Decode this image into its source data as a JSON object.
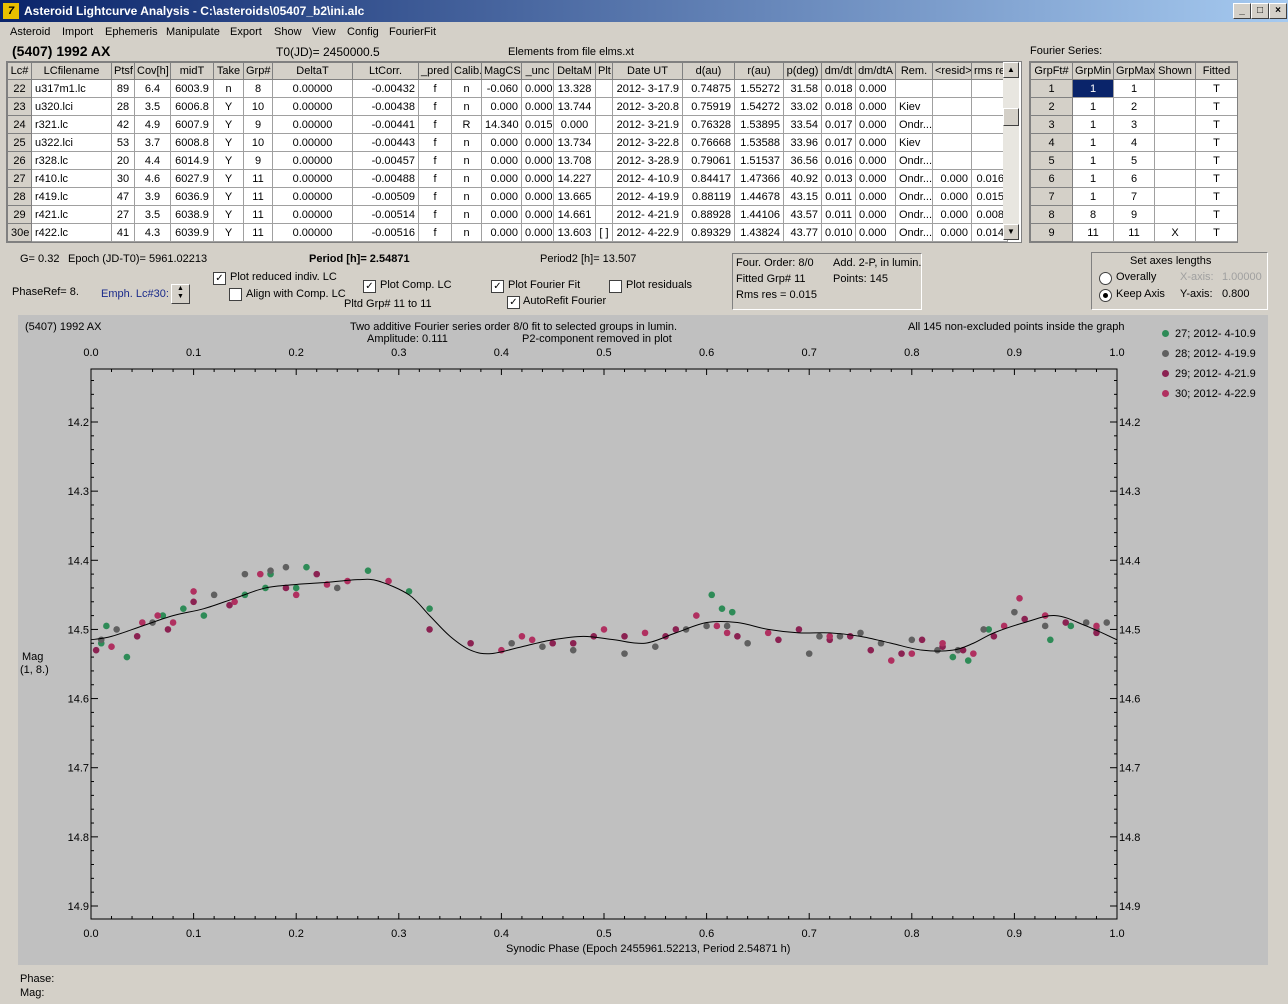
{
  "window": {
    "title": "Asteroid Lightcurve Analysis - C:\\asteroids\\05407_b2\\ini.alc",
    "icon": "7",
    "min": "_",
    "max": "□",
    "close": "×"
  },
  "menu": [
    "Asteroid",
    "Import",
    "Ephemeris",
    "Manipulate",
    "Export",
    "Show",
    "View",
    "Config",
    "FourierFit"
  ],
  "header": {
    "asteroid": "(5407) 1992 AX",
    "t0": "T0(JD)= 2450000.5",
    "elements": "Elements from file elms.xt",
    "fourier_label": "Fourier Series:"
  },
  "lc_table": {
    "columns": [
      "Lc#",
      "LCfilename",
      "Ptsf",
      "Cov[h]",
      "midT",
      "Take",
      "Grp#",
      "DeltaT",
      "LtCorr.",
      "_pred",
      "Calib.",
      "MagCS",
      "_unc",
      "DeltaM",
      "Plt",
      "Date UT",
      "d(au)",
      "r(au)",
      "p(deg)",
      "dm/dt",
      "dm/dtA",
      "Rem.",
      "<resid>",
      "rms res"
    ],
    "rows": [
      [
        "22",
        "u317m1.lc",
        "89",
        "6.4",
        "6003.9",
        "n",
        "8",
        "0.00000",
        "-0.00432",
        "f",
        "n",
        "-0.060",
        "0.000",
        "13.328",
        "",
        "2012- 3-17.9",
        "0.74875",
        "1.55272",
        "31.58",
        "0.018",
        "0.000",
        "",
        "",
        ""
      ],
      [
        "23",
        "u320.lci",
        "28",
        "3.5",
        "6006.8",
        "Y",
        "10",
        "0.00000",
        "-0.00438",
        "f",
        "n",
        "0.000",
        "0.000",
        "13.744",
        "",
        "2012- 3-20.8",
        "0.75919",
        "1.54272",
        "33.02",
        "0.018",
        "0.000",
        "Kiev",
        "",
        ""
      ],
      [
        "24",
        "r321.lc",
        "42",
        "4.9",
        "6007.9",
        "Y",
        "9",
        "0.00000",
        "-0.00441",
        "f",
        "R",
        "14.340",
        "0.015",
        "0.000",
        "",
        "2012- 3-21.9",
        "0.76328",
        "1.53895",
        "33.54",
        "0.017",
        "0.000",
        "Ondr...",
        "",
        ""
      ],
      [
        "25",
        "u322.lci",
        "53",
        "3.7",
        "6008.8",
        "Y",
        "10",
        "0.00000",
        "-0.00443",
        "f",
        "n",
        "0.000",
        "0.000",
        "13.734",
        "",
        "2012- 3-22.8",
        "0.76668",
        "1.53588",
        "33.96",
        "0.017",
        "0.000",
        "Kiev",
        "",
        ""
      ],
      [
        "26",
        "r328.lc",
        "20",
        "4.4",
        "6014.9",
        "Y",
        "9",
        "0.00000",
        "-0.00457",
        "f",
        "n",
        "0.000",
        "0.000",
        "13.708",
        "",
        "2012- 3-28.9",
        "0.79061",
        "1.51537",
        "36.56",
        "0.016",
        "0.000",
        "Ondr...",
        "",
        ""
      ],
      [
        "27",
        "r410.lc",
        "30",
        "4.6",
        "6027.9",
        "Y",
        "11",
        "0.00000",
        "-0.00488",
        "f",
        "n",
        "0.000",
        "0.000",
        "14.227",
        "",
        "2012- 4-10.9",
        "0.84417",
        "1.47366",
        "40.92",
        "0.013",
        "0.000",
        "Ondr...",
        "0.000",
        "0.016"
      ],
      [
        "28",
        "r419.lc",
        "47",
        "3.9",
        "6036.9",
        "Y",
        "11",
        "0.00000",
        "-0.00509",
        "f",
        "n",
        "0.000",
        "0.000",
        "13.665",
        "",
        "2012- 4-19.9",
        "0.88119",
        "1.44678",
        "43.15",
        "0.011",
        "0.000",
        "Ondr...",
        "0.000",
        "0.015"
      ],
      [
        "29",
        "r421.lc",
        "27",
        "3.5",
        "6038.9",
        "Y",
        "11",
        "0.00000",
        "-0.00514",
        "f",
        "n",
        "0.000",
        "0.000",
        "14.661",
        "",
        "2012- 4-21.9",
        "0.88928",
        "1.44106",
        "43.57",
        "0.011",
        "0.000",
        "Ondr...",
        "0.000",
        "0.008"
      ],
      [
        "30e",
        "r422.lc",
        "41",
        "4.3",
        "6039.9",
        "Y",
        "11",
        "0.00000",
        "-0.00516",
        "f",
        "n",
        "0.000",
        "0.000",
        "13.603",
        "[ ]",
        "2012- 4-22.9",
        "0.89329",
        "1.43824",
        "43.77",
        "0.010",
        "0.000",
        "Ondr...",
        "0.000",
        "0.014"
      ]
    ]
  },
  "fourier_table": {
    "columns": [
      "GrpFt#",
      "GrpMin",
      "GrpMax",
      "Shown",
      "Fitted"
    ],
    "rows": [
      [
        "1",
        "1",
        "1",
        "",
        "T"
      ],
      [
        "2",
        "1",
        "2",
        "",
        "T"
      ],
      [
        "3",
        "1",
        "3",
        "",
        "T"
      ],
      [
        "4",
        "1",
        "4",
        "",
        "T"
      ],
      [
        "5",
        "1",
        "5",
        "",
        "T"
      ],
      [
        "6",
        "1",
        "6",
        "",
        "T"
      ],
      [
        "7",
        "1",
        "7",
        "",
        "T"
      ],
      [
        "8",
        "8",
        "9",
        "",
        "T"
      ],
      [
        "9",
        "11",
        "11",
        "X",
        "T"
      ]
    ]
  },
  "controls": {
    "g": "G= 0.32",
    "epoch": "Epoch (JD-T0)= 5961.02213",
    "period": "Period [h]= 2.54871",
    "period2": "Period2 [h]= 13.507",
    "phaseref": "PhaseRef= 8.",
    "emph": "Emph. Lc#30:",
    "plot_reduced": "Plot reduced indiv. LC",
    "align_comp": "Align with Comp. LC",
    "plot_comp": "Plot Comp. LC",
    "pltd_grp": "Pltd Grp#  11 to   11",
    "plot_fourier": "Plot Fourier Fit",
    "autorefit": "AutoRefit Fourier",
    "plot_resid": "Plot residuals",
    "check_mark": "✓"
  },
  "info_box": {
    "order": "Four. Order:  8/0",
    "add": "Add. 2-P, in lumin.",
    "fitted": "Fitted Grp# 11",
    "points": "Points: 145",
    "rms": "Rms res     = 0.015"
  },
  "axes_box": {
    "title": "Set axes lengths",
    "overally": "Overally",
    "keep": "Keep Axis",
    "xaxis_label": "X-axis:",
    "xaxis_val": "1.00000",
    "yaxis_label": "Y-axis:",
    "yaxis_val": "0.800"
  },
  "graph": {
    "name": "(5407) 1992 AX",
    "title1": "Two additive Fourier series order 8/0 fit to selected groups in lumin.",
    "title2_left": "Amplitude: 0.111",
    "title2_right": "P2-component removed in plot",
    "note": "All 145 non-excluded points inside the graph",
    "xlabel": "Synodic Phase (Epoch 2455961.52213, Period 2.54871 h)",
    "ylabel1": "Mag",
    "ylabel2": "(1, 8.)",
    "status_phase": "Phase:",
    "status_mag": "Mag:"
  },
  "chart_data": {
    "type": "scatter",
    "xlabel": "Synodic Phase (Epoch 2455961.52213, Period 2.54871 h)",
    "ylabel": "Mag",
    "xlim": [
      0,
      1
    ],
    "ylim": [
      14.1,
      14.92
    ],
    "y_inverted": true,
    "xticks": [
      "0.0",
      "0.1",
      "0.2",
      "0.3",
      "0.4",
      "0.5",
      "0.6",
      "0.7",
      "0.8",
      "0.9",
      "1.0"
    ],
    "yticks": [
      "14.2",
      "14.3",
      "14.4",
      "14.5",
      "14.6",
      "14.7",
      "14.8",
      "14.9"
    ],
    "series": [
      {
        "name": "27; 2012- 4-10.9",
        "color": "#2e8b57",
        "points": [
          [
            0.01,
            14.52
          ],
          [
            0.015,
            14.495
          ],
          [
            0.035,
            14.54
          ],
          [
            0.07,
            14.48
          ],
          [
            0.09,
            14.47
          ],
          [
            0.11,
            14.48
          ],
          [
            0.15,
            14.45
          ],
          [
            0.17,
            14.44
          ],
          [
            0.175,
            14.42
          ],
          [
            0.2,
            14.44
          ],
          [
            0.21,
            14.41
          ],
          [
            0.27,
            14.415
          ],
          [
            0.31,
            14.445
          ],
          [
            0.33,
            14.47
          ],
          [
            0.605,
            14.45
          ],
          [
            0.615,
            14.47
          ],
          [
            0.625,
            14.475
          ],
          [
            0.84,
            14.54
          ],
          [
            0.855,
            14.545
          ],
          [
            0.875,
            14.5
          ],
          [
            0.935,
            14.515
          ],
          [
            0.955,
            14.495
          ]
        ]
      },
      {
        "name": "28; 2012- 4-19.9",
        "color": "#606060",
        "points": [
          [
            0.01,
            14.515
          ],
          [
            0.025,
            14.5
          ],
          [
            0.06,
            14.49
          ],
          [
            0.12,
            14.45
          ],
          [
            0.15,
            14.42
          ],
          [
            0.175,
            14.415
          ],
          [
            0.19,
            14.41
          ],
          [
            0.24,
            14.44
          ],
          [
            0.41,
            14.52
          ],
          [
            0.44,
            14.525
          ],
          [
            0.47,
            14.53
          ],
          [
            0.52,
            14.535
          ],
          [
            0.55,
            14.525
          ],
          [
            0.58,
            14.5
          ],
          [
            0.6,
            14.495
          ],
          [
            0.62,
            14.495
          ],
          [
            0.64,
            14.52
          ],
          [
            0.7,
            14.535
          ],
          [
            0.71,
            14.51
          ],
          [
            0.73,
            14.51
          ],
          [
            0.75,
            14.505
          ],
          [
            0.77,
            14.52
          ],
          [
            0.8,
            14.515
          ],
          [
            0.825,
            14.53
          ],
          [
            0.845,
            14.53
          ],
          [
            0.87,
            14.5
          ],
          [
            0.9,
            14.475
          ],
          [
            0.93,
            14.495
          ],
          [
            0.97,
            14.49
          ],
          [
            0.98,
            14.5
          ],
          [
            0.99,
            14.49
          ]
        ]
      },
      {
        "name": "29; 2012- 4-21.9",
        "color": "#8b2252",
        "points": [
          [
            0.005,
            14.53
          ],
          [
            0.045,
            14.51
          ],
          [
            0.075,
            14.5
          ],
          [
            0.1,
            14.46
          ],
          [
            0.135,
            14.465
          ],
          [
            0.19,
            14.44
          ],
          [
            0.22,
            14.42
          ],
          [
            0.33,
            14.5
          ],
          [
            0.37,
            14.52
          ],
          [
            0.45,
            14.52
          ],
          [
            0.47,
            14.52
          ],
          [
            0.49,
            14.51
          ],
          [
            0.52,
            14.51
          ],
          [
            0.56,
            14.51
          ],
          [
            0.57,
            14.5
          ],
          [
            0.63,
            14.51
          ],
          [
            0.67,
            14.515
          ],
          [
            0.69,
            14.5
          ],
          [
            0.72,
            14.515
          ],
          [
            0.74,
            14.51
          ],
          [
            0.76,
            14.53
          ],
          [
            0.79,
            14.535
          ],
          [
            0.81,
            14.515
          ],
          [
            0.83,
            14.525
          ],
          [
            0.85,
            14.53
          ],
          [
            0.88,
            14.51
          ],
          [
            0.91,
            14.485
          ],
          [
            0.95,
            14.49
          ],
          [
            0.98,
            14.505
          ]
        ]
      },
      {
        "name": "30; 2012- 4-22.9",
        "color": "#b03060",
        "points": [
          [
            0.02,
            14.525
          ],
          [
            0.05,
            14.49
          ],
          [
            0.065,
            14.48
          ],
          [
            0.08,
            14.49
          ],
          [
            0.1,
            14.445
          ],
          [
            0.14,
            14.46
          ],
          [
            0.165,
            14.42
          ],
          [
            0.2,
            14.45
          ],
          [
            0.23,
            14.435
          ],
          [
            0.25,
            14.43
          ],
          [
            0.29,
            14.43
          ],
          [
            0.4,
            14.53
          ],
          [
            0.42,
            14.51
          ],
          [
            0.43,
            14.515
          ],
          [
            0.5,
            14.5
          ],
          [
            0.54,
            14.505
          ],
          [
            0.59,
            14.48
          ],
          [
            0.61,
            14.495
          ],
          [
            0.62,
            14.505
          ],
          [
            0.66,
            14.505
          ],
          [
            0.72,
            14.51
          ],
          [
            0.78,
            14.545
          ],
          [
            0.8,
            14.535
          ],
          [
            0.83,
            14.52
          ],
          [
            0.86,
            14.535
          ],
          [
            0.89,
            14.495
          ],
          [
            0.905,
            14.455
          ],
          [
            0.93,
            14.48
          ],
          [
            0.98,
            14.495
          ]
        ]
      }
    ],
    "fit_curve": [
      [
        0,
        14.515
      ],
      [
        0.02,
        14.51
      ],
      [
        0.05,
        14.495
      ],
      [
        0.08,
        14.48
      ],
      [
        0.11,
        14.47
      ],
      [
        0.14,
        14.455
      ],
      [
        0.17,
        14.44
      ],
      [
        0.2,
        14.435
      ],
      [
        0.23,
        14.432
      ],
      [
        0.26,
        14.428
      ],
      [
        0.28,
        14.43
      ],
      [
        0.31,
        14.45
      ],
      [
        0.33,
        14.48
      ],
      [
        0.35,
        14.51
      ],
      [
        0.37,
        14.53
      ],
      [
        0.39,
        14.535
      ],
      [
        0.42,
        14.525
      ],
      [
        0.45,
        14.515
      ],
      [
        0.48,
        14.51
      ],
      [
        0.51,
        14.515
      ],
      [
        0.54,
        14.52
      ],
      [
        0.57,
        14.505
      ],
      [
        0.6,
        14.49
      ],
      [
        0.63,
        14.49
      ],
      [
        0.66,
        14.5
      ],
      [
        0.69,
        14.505
      ],
      [
        0.72,
        14.505
      ],
      [
        0.75,
        14.51
      ],
      [
        0.78,
        14.52
      ],
      [
        0.81,
        14.53
      ],
      [
        0.84,
        14.53
      ],
      [
        0.86,
        14.52
      ],
      [
        0.88,
        14.505
      ],
      [
        0.91,
        14.49
      ],
      [
        0.94,
        14.48
      ],
      [
        0.97,
        14.495
      ],
      [
        1.0,
        14.515
      ]
    ]
  }
}
